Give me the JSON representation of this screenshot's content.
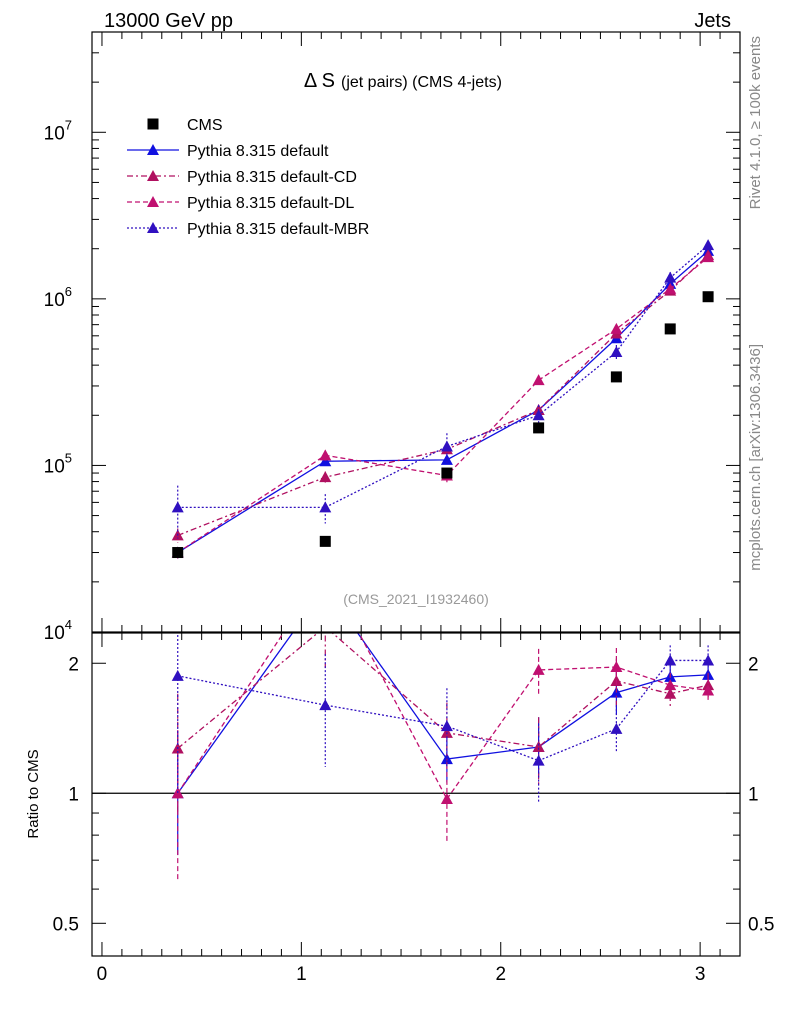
{
  "header": {
    "left": "13000 GeV pp",
    "right": "Jets"
  },
  "side_labels": {
    "rivet": "Rivet 4.1.0, ≥ 100k events",
    "mcplots": "mcplots.cern.ch [arXiv:1306.3436]"
  },
  "chart_data": {
    "type": "line",
    "title_main": "Δ S",
    "title_sub": "(jet pairs) (CMS 4-jets)",
    "watermark": "(CMS_2021_I1932460)",
    "xlabel": "",
    "ylabel_ratio": "Ratio to CMS",
    "xlim": [
      -0.05,
      3.2
    ],
    "ylim_main": [
      10000,
      40000000
    ],
    "ylim_ratio": [
      0.42,
      2.35
    ],
    "x_ticks": [
      {
        "value": 0,
        "label": "0"
      },
      {
        "value": 1,
        "label": "1"
      },
      {
        "value": 2,
        "label": "2"
      },
      {
        "value": 3,
        "label": "3"
      }
    ],
    "y_ticks_main": [
      {
        "value": 10000,
        "base": "10",
        "exp": "4"
      },
      {
        "value": 100000,
        "base": "10",
        "exp": "5"
      },
      {
        "value": 1000000,
        "base": "10",
        "exp": "6"
      },
      {
        "value": 10000000,
        "base": "10",
        "exp": "7"
      }
    ],
    "y_ticks_ratio": [
      {
        "value": 0.5,
        "label": "0.5"
      },
      {
        "value": 1,
        "label": "1"
      },
      {
        "value": 2,
        "label": "2"
      }
    ],
    "x": [
      0.38,
      1.12,
      1.73,
      2.19,
      2.58,
      2.85,
      3.04
    ],
    "data": {
      "name": "CMS",
      "color": "#000000",
      "values": [
        30000,
        35000,
        90000,
        168000,
        340000,
        660000,
        1030000
      ]
    },
    "series": [
      {
        "name": "Pythia 8.315 default",
        "color": "#1010e0",
        "dash": "solid",
        "values": [
          30000,
          106000,
          108000,
          215000,
          580000,
          1230000,
          1940000
        ],
        "errors": [
          0.08,
          0.06,
          0.05,
          0.05,
          0.05,
          0.04,
          0.04
        ],
        "ratio": [
          1.0,
          3.0,
          1.2,
          1.28,
          1.71,
          1.86,
          1.88
        ],
        "ratio_err": [
          [
            0.72,
            1.38
          ],
          [
            2.6,
            3.4
          ],
          [
            1.06,
            1.44
          ],
          [
            1.1,
            1.5
          ],
          [
            1.52,
            1.92
          ],
          [
            1.74,
            1.99
          ],
          [
            1.76,
            2.0
          ]
        ]
      },
      {
        "name": "Pythia 8.315 default-CD",
        "color": "#b01060",
        "dash": "dashdot",
        "values": [
          38000,
          85000,
          125000,
          215000,
          620000,
          1120000,
          1830000
        ],
        "errors": [
          0.1,
          0.08,
          0.07,
          0.06,
          0.05,
          0.05,
          0.04
        ],
        "ratio": [
          1.27,
          2.43,
          1.38,
          1.28,
          1.82,
          1.7,
          1.78
        ],
        "ratio_err": [
          [
            0.9,
            1.7
          ],
          [
            1.95,
            2.9
          ],
          [
            1.15,
            1.62
          ],
          [
            1.05,
            1.5
          ],
          [
            1.6,
            2.05
          ],
          [
            1.58,
            1.82
          ],
          [
            1.67,
            1.9
          ]
        ]
      },
      {
        "name": "Pythia 8.315 default-DL",
        "color": "#c01070",
        "dash": "dashed",
        "values": [
          30000,
          115000,
          87000,
          325000,
          660000,
          1150000,
          1780000
        ],
        "errors": [
          0.08,
          0.07,
          0.09,
          0.06,
          0.05,
          0.05,
          0.04
        ],
        "ratio": [
          1.0,
          3.3,
          0.97,
          1.93,
          1.96,
          1.78,
          1.73
        ],
        "ratio_err": [
          [
            0.63,
            1.4
          ],
          [
            2.7,
            3.9
          ],
          [
            0.77,
            1.17
          ],
          [
            1.7,
            2.16
          ],
          [
            1.75,
            2.17
          ],
          [
            1.66,
            1.9
          ],
          [
            1.62,
            1.84
          ]
        ]
      },
      {
        "name": "Pythia 8.315 default-MBR",
        "color": "#3010c0",
        "dash": "dotted",
        "values": [
          56000,
          56000,
          130000,
          200000,
          480000,
          1340000,
          2100000
        ],
        "errors": [
          0.35,
          0.2,
          0.2,
          0.15,
          0.1,
          0.08,
          0.06
        ],
        "ratio": [
          1.87,
          1.6,
          1.43,
          1.19,
          1.41,
          2.03,
          2.03
        ],
        "ratio_err": [
          [
            1.0,
            2.7
          ],
          [
            1.15,
            2.1
          ],
          [
            1.15,
            1.75
          ],
          [
            0.95,
            1.45
          ],
          [
            1.25,
            1.6
          ],
          [
            1.9,
            2.2
          ],
          [
            1.9,
            2.2
          ]
        ]
      }
    ]
  }
}
